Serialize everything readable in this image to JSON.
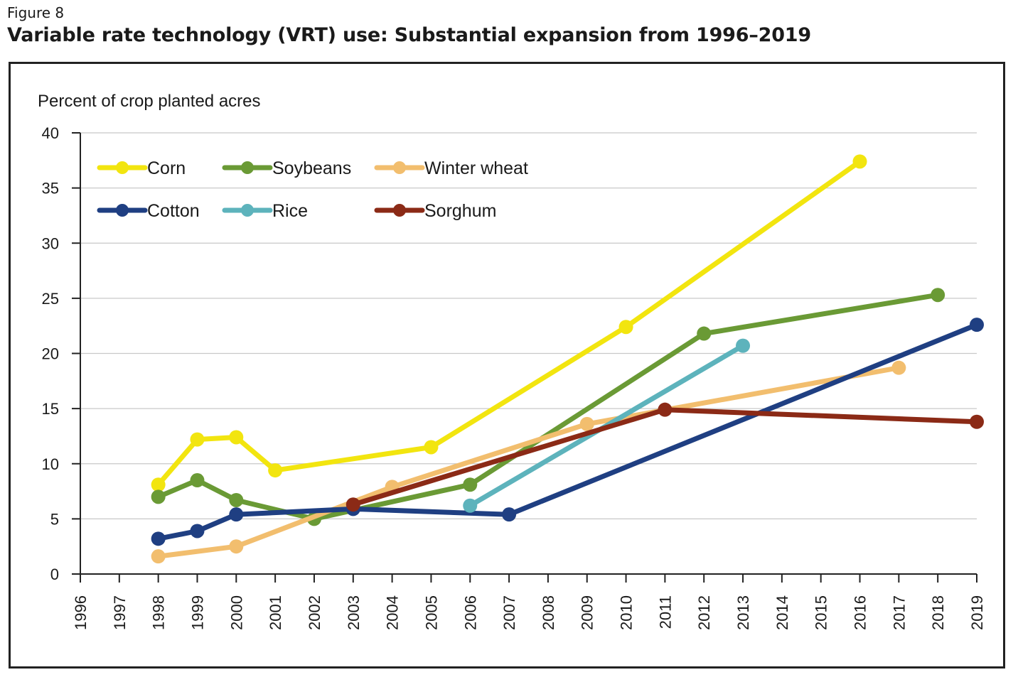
{
  "figure": {
    "label": "Figure 8",
    "title": "Variable rate technology (VRT) use: Substantial expansion from 1996–2019"
  },
  "chart_data": {
    "type": "line",
    "ylabel": "Percent of crop planted acres",
    "xlabel": "",
    "xlim": [
      1996,
      2019
    ],
    "ylim": [
      0,
      40
    ],
    "y_ticks": [
      0,
      5,
      10,
      15,
      20,
      25,
      30,
      35,
      40
    ],
    "x_ticks": [
      1996,
      1997,
      1998,
      1999,
      2000,
      2001,
      2002,
      2003,
      2004,
      2005,
      2006,
      2007,
      2008,
      2009,
      2010,
      2011,
      2012,
      2013,
      2014,
      2015,
      2016,
      2017,
      2018,
      2019
    ],
    "grid": "horizontal",
    "legend_position": "top-left",
    "series": [
      {
        "name": "Corn",
        "color": "#f2e50f",
        "points": [
          [
            1998,
            8.1
          ],
          [
            1999,
            12.2
          ],
          [
            2000,
            12.4
          ],
          [
            2001,
            9.4
          ],
          [
            2005,
            11.5
          ],
          [
            2010,
            22.4
          ],
          [
            2016,
            37.4
          ]
        ]
      },
      {
        "name": "Soybeans",
        "color": "#6a9a35",
        "points": [
          [
            1998,
            7.0
          ],
          [
            1999,
            8.5
          ],
          [
            2000,
            6.7
          ],
          [
            2002,
            5.0
          ],
          [
            2006,
            8.1
          ],
          [
            2012,
            21.8
          ],
          [
            2018,
            25.3
          ]
        ]
      },
      {
        "name": "Winter wheat",
        "color": "#f2be6e",
        "points": [
          [
            1998,
            1.6
          ],
          [
            2000,
            2.5
          ],
          [
            2004,
            7.9
          ],
          [
            2009,
            13.6
          ],
          [
            2017,
            18.7
          ]
        ]
      },
      {
        "name": "Cotton",
        "color": "#1f3f82",
        "points": [
          [
            1998,
            3.2
          ],
          [
            1999,
            3.9
          ],
          [
            2000,
            5.4
          ],
          [
            2003,
            5.9
          ],
          [
            2007,
            5.4
          ],
          [
            2019,
            22.6
          ]
        ]
      },
      {
        "name": "Rice",
        "color": "#5db3bc",
        "points": [
          [
            2006,
            6.2
          ],
          [
            2013,
            20.7
          ]
        ]
      },
      {
        "name": "Sorghum",
        "color": "#8b2a16",
        "points": [
          [
            2003,
            6.3
          ],
          [
            2011,
            14.9
          ],
          [
            2019,
            13.8
          ]
        ]
      }
    ]
  }
}
